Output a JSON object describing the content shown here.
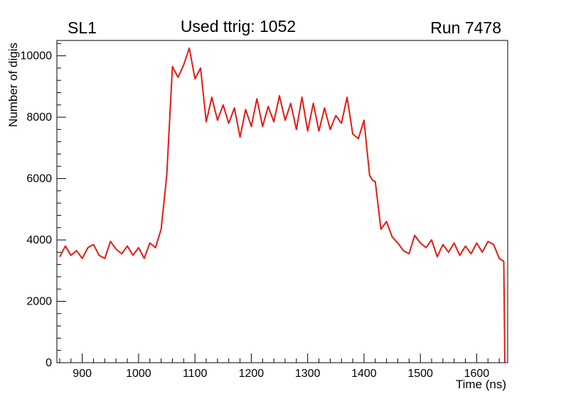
{
  "header": {
    "left": "SL1",
    "center": "Used ttrig: 1052",
    "right": "Run 7478"
  },
  "chart_data": {
    "type": "line",
    "title": "Used ttrig: 1052",
    "xlabel": "Time (ns)",
    "ylabel": "Number of digis",
    "xlim": [
      855,
      1655
    ],
    "ylim": [
      0,
      10500
    ],
    "x_ticks": [
      900,
      1000,
      1100,
      1200,
      1300,
      1400,
      1500,
      1600
    ],
    "y_ticks": [
      0,
      2000,
      4000,
      6000,
      8000,
      10000
    ],
    "x_minor_step": 20,
    "y_minor_step": 400,
    "grid": false,
    "legend": "none",
    "line_color": "#e51a12",
    "series": [
      {
        "name": "digis-vs-time",
        "x": [
          860,
          870,
          880,
          890,
          900,
          910,
          920,
          930,
          940,
          950,
          960,
          970,
          980,
          990,
          1000,
          1010,
          1020,
          1030,
          1040,
          1050,
          1060,
          1070,
          1080,
          1090,
          1100,
          1110,
          1120,
          1130,
          1140,
          1150,
          1160,
          1170,
          1180,
          1190,
          1200,
          1210,
          1220,
          1230,
          1240,
          1250,
          1260,
          1270,
          1280,
          1290,
          1300,
          1310,
          1320,
          1330,
          1340,
          1350,
          1360,
          1370,
          1380,
          1390,
          1400,
          1410,
          1415,
          1420,
          1430,
          1440,
          1450,
          1460,
          1470,
          1480,
          1490,
          1500,
          1510,
          1520,
          1530,
          1540,
          1550,
          1560,
          1570,
          1580,
          1590,
          1600,
          1610,
          1620,
          1630,
          1640,
          1648,
          1650
        ],
        "y": [
          3450,
          3800,
          3500,
          3650,
          3400,
          3750,
          3850,
          3500,
          3400,
          3950,
          3700,
          3550,
          3800,
          3500,
          3750,
          3400,
          3900,
          3750,
          4350,
          6100,
          9650,
          9300,
          9700,
          10250,
          9250,
          9600,
          7850,
          8650,
          7900,
          8400,
          7800,
          8300,
          7350,
          8250,
          7700,
          8600,
          7700,
          8350,
          7850,
          8700,
          7900,
          8450,
          7600,
          8650,
          7550,
          8450,
          7550,
          8300,
          7600,
          8050,
          7800,
          8650,
          7450,
          7300,
          7900,
          6100,
          5950,
          5900,
          4350,
          4600,
          4100,
          3900,
          3650,
          3550,
          4150,
          3900,
          3750,
          4000,
          3450,
          3850,
          3600,
          3900,
          3500,
          3800,
          3550,
          3900,
          3600,
          3950,
          3850,
          3400,
          3300,
          0
        ]
      }
    ]
  }
}
